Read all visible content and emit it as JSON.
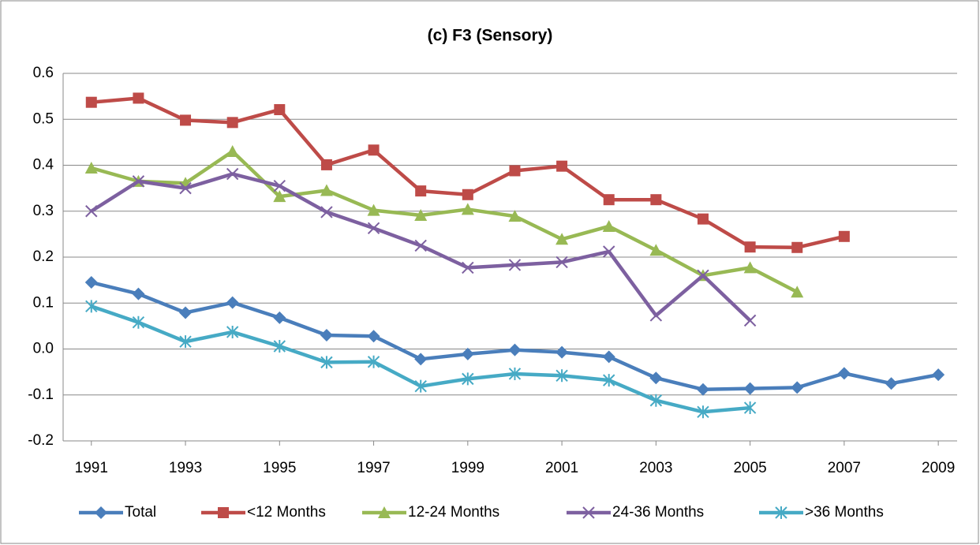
{
  "chart_data": {
    "type": "line",
    "title": "(c) F3 (Sensory)",
    "x": [
      1991,
      1992,
      1993,
      1994,
      1995,
      1996,
      1997,
      1998,
      1999,
      2000,
      2001,
      2002,
      2003,
      2004,
      2005,
      2006,
      2007,
      2008,
      2009
    ],
    "xlim": [
      1990.4,
      2009.4
    ],
    "xticks": [
      1991,
      1993,
      1995,
      1997,
      1999,
      2001,
      2003,
      2005,
      2007,
      2009
    ],
    "ylim": [
      -0.2,
      0.6
    ],
    "yticks": [
      -0.2,
      -0.1,
      {
        "value": 0,
        "label": "0.0"
      },
      0.1,
      0.2,
      0.3,
      0.4,
      0.5,
      0.6
    ],
    "grid": true,
    "legend": "bottom",
    "series": [
      {
        "name": "Total",
        "color": "#4a7ebb",
        "marker": "diamond",
        "values": [
          0.145,
          0.12,
          0.079,
          0.101,
          0.068,
          0.03,
          0.028,
          -0.022,
          -0.011,
          -0.002,
          -0.007,
          -0.017,
          -0.063,
          -0.088,
          -0.086,
          -0.084,
          -0.053,
          -0.075,
          -0.056
        ]
      },
      {
        "name": "<12 Months",
        "color": "#be4b48",
        "marker": "square",
        "values": [
          0.537,
          0.546,
          0.498,
          0.493,
          0.521,
          0.401,
          0.433,
          0.344,
          0.336,
          0.388,
          0.398,
          0.325,
          0.325,
          0.283,
          0.222,
          0.221,
          0.245,
          null,
          null
        ]
      },
      {
        "name": "12-24 Months",
        "color": "#98b954",
        "marker": "triangle",
        "values": [
          0.394,
          0.365,
          0.361,
          0.43,
          0.332,
          0.345,
          0.302,
          0.291,
          0.304,
          0.289,
          0.239,
          0.267,
          0.215,
          0.16,
          0.177,
          0.124,
          null,
          null,
          null
        ]
      },
      {
        "name": "24-36 Months",
        "color": "#7d60a0",
        "marker": "x",
        "values": [
          0.3,
          0.365,
          0.35,
          0.381,
          0.355,
          0.298,
          0.263,
          0.225,
          0.177,
          0.183,
          0.189,
          0.212,
          0.073,
          0.16,
          0.062,
          null,
          null,
          null,
          null
        ]
      },
      {
        "name": ">36 Months",
        "color": "#46aac5",
        "marker": "asterisk",
        "values": [
          0.093,
          0.058,
          0.016,
          0.037,
          0.006,
          -0.029,
          -0.028,
          -0.081,
          -0.065,
          -0.054,
          -0.058,
          -0.068,
          -0.112,
          -0.137,
          -0.128,
          null,
          null,
          null,
          null
        ]
      }
    ]
  }
}
